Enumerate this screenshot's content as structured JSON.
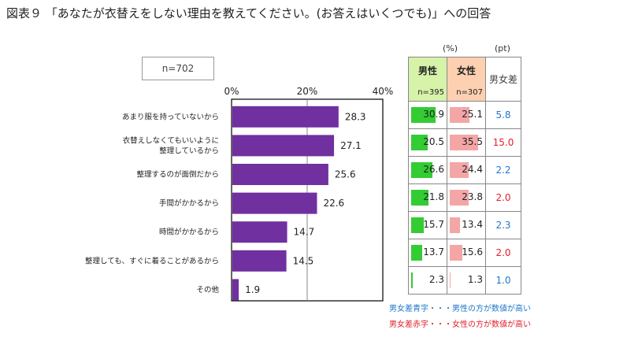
{
  "title": "図表９ 「あなたが衣替えをしない理由を教えてください。(お答えはいくつでも)」への回答",
  "sample_label": "n=702",
  "table": {
    "unit_pct": "(%)",
    "unit_pt": "(pt)",
    "male_header": "男性",
    "male_n": "n=395",
    "female_header": "女性",
    "female_n": "n=307",
    "diff_header": "男女差",
    "colors": {
      "male": "#33cc33",
      "female": "#f4a6a6",
      "blue": "#1f77c8",
      "red": "#e0202c"
    },
    "rows": [
      {
        "male": "30.9",
        "female": "25.1",
        "diff": "5.8",
        "diff_color": "blue"
      },
      {
        "male": "20.5",
        "female": "35.5",
        "diff": "15.0",
        "diff_color": "red"
      },
      {
        "male": "26.6",
        "female": "24.4",
        "diff": "2.2",
        "diff_color": "blue"
      },
      {
        "male": "21.8",
        "female": "23.8",
        "diff": "2.0",
        "diff_color": "red"
      },
      {
        "male": "15.7",
        "female": "13.4",
        "diff": "2.3",
        "diff_color": "blue"
      },
      {
        "male": "13.7",
        "female": "15.6",
        "diff": "2.0",
        "diff_color": "red"
      },
      {
        "male": "2.3",
        "female": "1.3",
        "diff": "1.0",
        "diff_color": "blue"
      }
    ]
  },
  "notes": {
    "blue": "男女差青字・・・男性の方が数値が高い",
    "red": "男女差赤字・・・女性の方が数値が高い"
  },
  "chart_data": {
    "type": "bar",
    "orientation": "horizontal",
    "title": "",
    "categories": [
      [
        "あまり服を持っていないから"
      ],
      [
        "衣替えしなくてもいいように",
        "整理しているから"
      ],
      [
        "整理するのが面倒だから"
      ],
      [
        "手間がかかるから"
      ],
      [
        "時間がかかるから"
      ],
      [
        "整理しても、すぐに着ることがあるから"
      ],
      [
        "その他"
      ]
    ],
    "values": [
      28.3,
      27.1,
      25.6,
      22.6,
      14.7,
      14.5,
      1.9
    ],
    "value_labels": [
      "28.3",
      "27.1",
      "25.6",
      "22.6",
      "14.7",
      "14.5",
      "1.9"
    ],
    "xlim": [
      0,
      40
    ],
    "ticks": [
      0,
      20,
      40
    ],
    "tick_labels": [
      "0%",
      "20%",
      "40%"
    ],
    "bar_color": "#7030a0",
    "grid": true
  }
}
